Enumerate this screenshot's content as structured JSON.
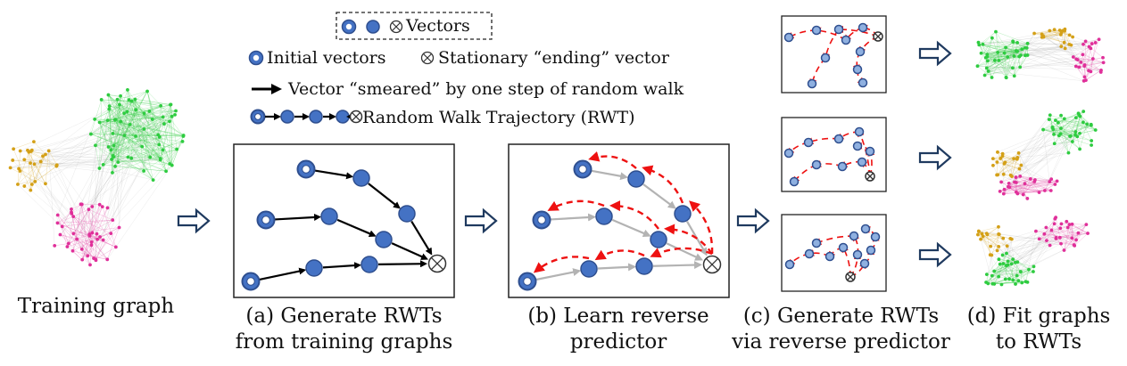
{
  "legend": {
    "vectors_label": "Vectors",
    "initial_label": "Initial vectors",
    "ending_label": "Stationary “ending” vector",
    "smeared_label": "Vector “smeared” by one step of random walk",
    "rwt_label": "Random Walk Trajectory (RWT)"
  },
  "captions": {
    "training": "Training graph",
    "a_line1": "(a) Generate RWTs",
    "a_line2": "from training graphs",
    "b_line1": "(b) Learn reverse",
    "b_line2": "predictor",
    "c_line1": "(c) Generate RWTs",
    "c_line2": "via reverse predictor",
    "d_line1": "(d) Fit graphs",
    "d_line2": "to RWTs"
  },
  "colors": {
    "node_fill": "#4472c4",
    "node_stroke": "#2f4f8f",
    "small_node_fill": "#8fb0e0",
    "forward_arrow": "#000000",
    "gray_arrow": "#b3b3b3",
    "reverse_arrow": "#ee1111",
    "flow_arrow": "#1f3a5f",
    "cluster_green": "#2ecc40",
    "cluster_yellow": "#d4a017",
    "cluster_pink": "#e0309a"
  },
  "icons": [
    "initial-vector-icon",
    "vector-node-icon",
    "ending-vector-icon",
    "flow-arrow-icon"
  ]
}
